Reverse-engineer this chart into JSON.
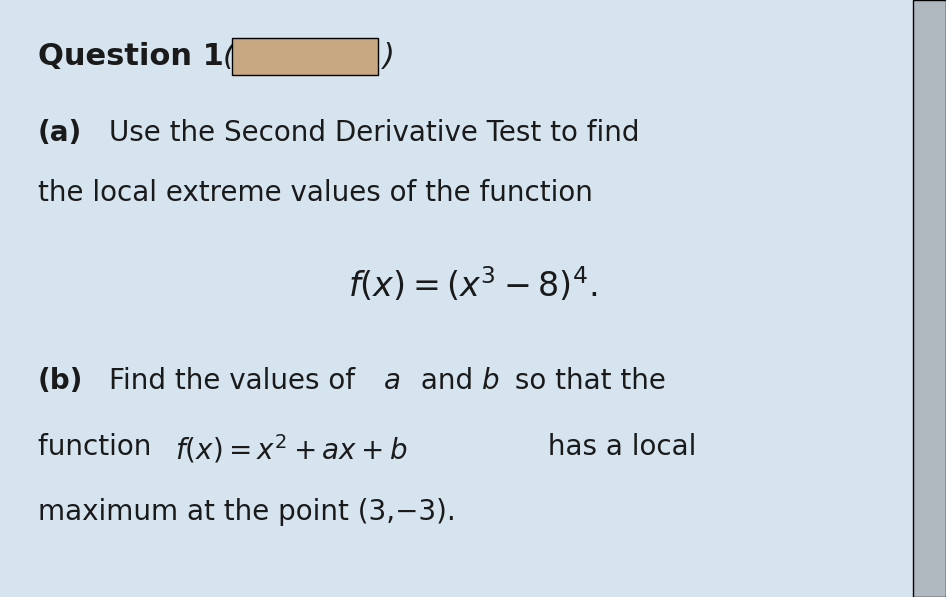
{
  "background_color": "#d6e4f0",
  "right_bar_color": "#b0b8c0",
  "title_bold": "Question 1",
  "title_redacted": true,
  "redacted_box_color": "#c8a882",
  "part_a_bold": "(a)",
  "part_a_text": " Use the Second Derivative Test to find\nthe local extreme values of the function",
  "formula_a": "$f(x) = (x^3 - 8)^4.$",
  "part_b_bold": "(b)",
  "part_b_text1": " Find the values of ",
  "part_b_italic_a": "a",
  "part_b_text2": " and ",
  "part_b_italic_b": "b",
  "part_b_text3": " so that the\nfunction ",
  "formula_b_inline": "$f(x) = x^2 + ax + b$",
  "part_b_text4": " has a local\nmaximum at the point (3,−3).",
  "font_size_title": 22,
  "font_size_body": 20,
  "font_size_formula": 22,
  "text_color": "#1a1a1a"
}
